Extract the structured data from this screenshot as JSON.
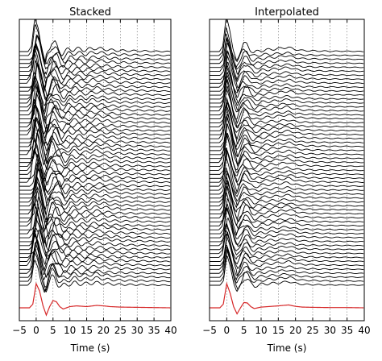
{
  "chart_data": [
    {
      "type": "line",
      "title": "Stacked",
      "xlabel": "Time (s)",
      "ylabel": "",
      "xlim": [
        -5,
        40
      ],
      "x_ticks": [
        -5,
        0,
        5,
        10,
        15,
        20,
        25,
        30,
        35,
        40
      ],
      "x_tick_labels": [
        "−5",
        "0",
        "5",
        "10",
        "15",
        "20",
        "25",
        "30",
        "35",
        "40"
      ],
      "grid": "x-dotted",
      "trace_count": 60,
      "trace_color": "#000000",
      "summary_trace_color": "#d62728",
      "series": [
        {
          "x": [
            -5,
            -2,
            -1,
            0,
            1,
            2,
            3,
            4,
            5,
            6,
            7,
            8,
            10,
            12,
            15,
            18,
            20,
            22,
            25,
            30,
            35,
            40
          ],
          "values": [
            0,
            0,
            0.15,
            1.0,
            0.7,
            0.1,
            -0.3,
            0.05,
            0.3,
            0.25,
            0.05,
            -0.05,
            0.05,
            0.08,
            0.05,
            0.1,
            0.08,
            0.05,
            0.03,
            0.02,
            0.01,
            0
          ]
        }
      ]
    },
    {
      "type": "line",
      "title": "Interpolated",
      "xlabel": "Time (s)",
      "ylabel": "",
      "xlim": [
        -5,
        40
      ],
      "x_ticks": [
        -5,
        0,
        5,
        10,
        15,
        20,
        25,
        30,
        35,
        40
      ],
      "x_tick_labels": [
        "−5",
        "0",
        "5",
        "10",
        "15",
        "20",
        "25",
        "30",
        "35",
        "40"
      ],
      "grid": "x-dotted",
      "trace_count": 60,
      "trace_color": "#000000",
      "summary_trace_color": "#d62728",
      "series": [
        {
          "x": [
            -5,
            -2,
            -1,
            0,
            1,
            2,
            3,
            4,
            5,
            6,
            7,
            8,
            10,
            12,
            15,
            18,
            20,
            22,
            25,
            30,
            35,
            40
          ],
          "values": [
            0,
            0,
            0.15,
            1.0,
            0.6,
            0.05,
            -0.25,
            0.0,
            0.22,
            0.2,
            0.05,
            -0.03,
            0.03,
            0.05,
            0.08,
            0.12,
            0.06,
            0.03,
            0.02,
            0.01,
            0.01,
            0
          ]
        }
      ]
    }
  ]
}
